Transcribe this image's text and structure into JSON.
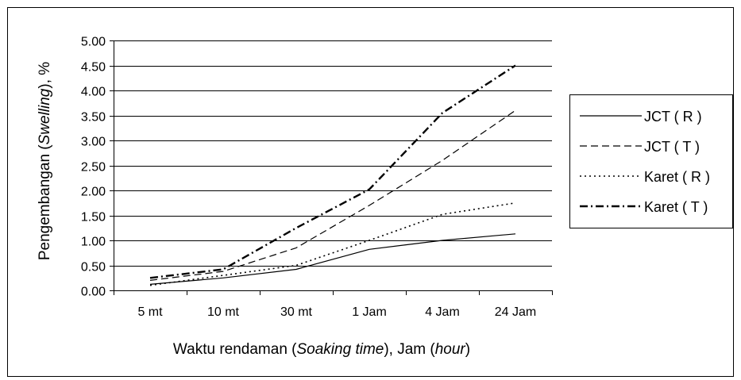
{
  "chart_data": {
    "type": "line",
    "categories": [
      "5 mt",
      "10 mt",
      "30 mt",
      "1 Jam",
      "4 Jam",
      "24 Jam"
    ],
    "yticks": [
      "0.00",
      "0.50",
      "1.00",
      "1.50",
      "2.00",
      "2.50",
      "3.00",
      "3.50",
      "4.00",
      "4.50",
      "5.00"
    ],
    "ylim": [
      0,
      5
    ],
    "grid": true,
    "legend_position": "right",
    "xlabel": {
      "prefix": "Waktu rendaman (",
      "italic": "Soaking time",
      "middle": "), Jam (",
      "italic2": "hour",
      "suffix": ")"
    },
    "ylabel": {
      "prefix": "Pengembangan (",
      "italic": "Swelling",
      "suffix": "), %"
    },
    "series": [
      {
        "name": "JCT ( R )",
        "dash": "solid",
        "width": 1.2,
        "values": [
          0.12,
          0.25,
          0.42,
          0.82,
          1.0,
          1.13
        ]
      },
      {
        "name": "JCT ( T )",
        "dash": "dash",
        "width": 1.2,
        "values": [
          0.2,
          0.38,
          0.85,
          1.7,
          2.6,
          3.6
        ]
      },
      {
        "name": "Karet ( R )",
        "dash": "dot",
        "width": 1.6,
        "values": [
          0.1,
          0.3,
          0.5,
          1.0,
          1.52,
          1.75
        ]
      },
      {
        "name": "Karet ( T )",
        "dash": "dashdot",
        "width": 2.4,
        "values": [
          0.25,
          0.42,
          1.25,
          2.02,
          3.55,
          4.5
        ]
      }
    ]
  }
}
